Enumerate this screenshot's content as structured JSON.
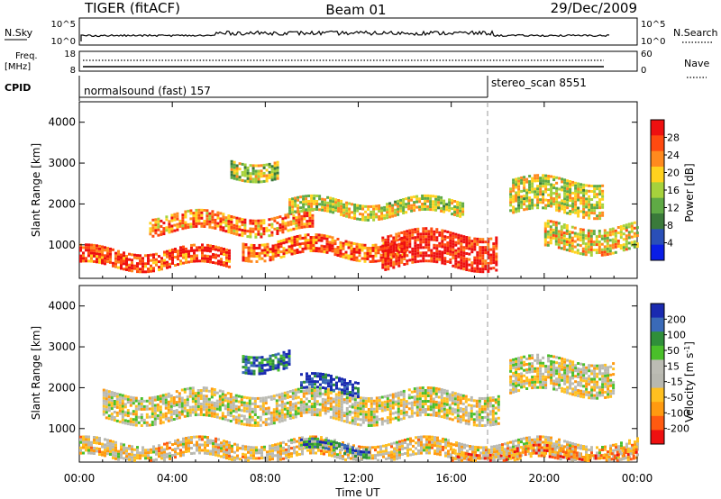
{
  "header": {
    "radar_label": "TIGER (fitACF)",
    "beam_label": "Beam 01",
    "date_label": "29/Dec/2009"
  },
  "status_panels": {
    "nsky_label": "N.Sky",
    "nsky_ticks": [
      "10^5",
      "10^0"
    ],
    "nsearch_label": "N.Search",
    "nsearch_ticks": [
      "10^5",
      "10^0"
    ],
    "freq_label_line1": "Freq.",
    "freq_label_line2": "[MHz]",
    "freq_ticks": [
      "18",
      "8"
    ],
    "nave_label": "Nave",
    "nave_ticks": [
      "60",
      "0"
    ],
    "cpid_label": "CPID",
    "cpid_segments": [
      {
        "name": "normalsound (fast) 157",
        "start_hour": 0
      },
      {
        "name": "stereo_scan 8551",
        "start_hour": 18.0
      }
    ]
  },
  "time_axis": {
    "label": "Time UT",
    "ticks": [
      "00:00",
      "04:00",
      "08:00",
      "12:00",
      "16:00",
      "20:00",
      "00:00"
    ]
  },
  "chart_data": [
    {
      "type": "heatmap",
      "parameter": "Power",
      "ylabel": "Slant Range [km]",
      "xlabel": "Time UT",
      "xlim_hours": [
        0,
        24
      ],
      "ylim_km": [
        180,
        4500
      ],
      "yticks": [
        "1000",
        "2000",
        "3000",
        "4000"
      ],
      "colorbar": {
        "label": "Power [dB]",
        "ticks": [
          "4",
          "8",
          "12",
          "16",
          "20",
          "24",
          "28"
        ],
        "range": [
          0,
          30
        ],
        "colors": [
          "#0a1ee6",
          "#2a4fb8",
          "#3a7a3a",
          "#5faa45",
          "#a6d23c",
          "#ffd21e",
          "#ff8a1e",
          "#ff4a10",
          "#ee1010"
        ]
      },
      "bands": [
        {
          "t0": 0.0,
          "t1": 6.5,
          "r0": 500,
          "r1": 900,
          "level": 0.85
        },
        {
          "t0": 3.0,
          "t1": 10.0,
          "r0": 1300,
          "r1": 1750,
          "level": 0.75
        },
        {
          "t0": 7.0,
          "t1": 14.0,
          "r0": 700,
          "r1": 1150,
          "level": 0.8
        },
        {
          "t0": 9.0,
          "t1": 16.5,
          "r0": 1750,
          "r1": 2100,
          "level": 0.55
        },
        {
          "t0": 13.0,
          "t1": 18.0,
          "r0": 500,
          "r1": 1300,
          "level": 0.95
        },
        {
          "t0": 18.5,
          "t1": 22.5,
          "r0": 1800,
          "r1": 2600,
          "level": 0.55
        },
        {
          "t0": 6.5,
          "t1": 8.5,
          "r0": 2700,
          "r1": 3100,
          "level": 0.5
        },
        {
          "t0": 20.0,
          "t1": 24.0,
          "r0": 900,
          "r1": 1500,
          "level": 0.6
        }
      ]
    },
    {
      "type": "heatmap",
      "parameter": "Velocity",
      "ylabel": "Slant Range [km]",
      "xlabel": "Time UT",
      "xlim_hours": [
        0,
        24
      ],
      "ylim_km": [
        180,
        4500
      ],
      "yticks": [
        "1000",
        "2000",
        "3000",
        "4000"
      ],
      "colorbar": {
        "label": "Velocity [m s^-1]",
        "ticks": [
          "200",
          "100",
          "50",
          "15",
          "-15",
          "-50",
          "-100",
          "-200"
        ],
        "range": [
          -250,
          250
        ],
        "colors": [
          "#ee1010",
          "#ff5a10",
          "#ff9a10",
          "#ffc020",
          "#b8b8b0",
          "#bcbcb4",
          "#4abf2a",
          "#2f8f3a",
          "#3a6ab8",
          "#1a2ab0"
        ]
      },
      "bands": [
        {
          "t0": 0.0,
          "t1": 24.0,
          "r0": 300,
          "r1": 700,
          "level": 0.4
        },
        {
          "t0": 1.0,
          "t1": 18.0,
          "r0": 1200,
          "r1": 1900,
          "level": 0.45
        },
        {
          "t0": 9.5,
          "t1": 12.5,
          "r0": 400,
          "r1": 650,
          "level": 0.75
        },
        {
          "t0": 7.0,
          "t1": 9.0,
          "r0": 2500,
          "r1": 2900,
          "level": 0.85
        },
        {
          "t0": 9.5,
          "t1": 12.0,
          "r0": 1900,
          "r1": 2250,
          "level": 0.95
        },
        {
          "t0": 16.0,
          "t1": 24.0,
          "r0": 200,
          "r1": 500,
          "level": 0.25
        },
        {
          "t0": 18.5,
          "t1": 23.0,
          "r0": 1900,
          "r1": 2700,
          "level": 0.45
        }
      ]
    }
  ]
}
